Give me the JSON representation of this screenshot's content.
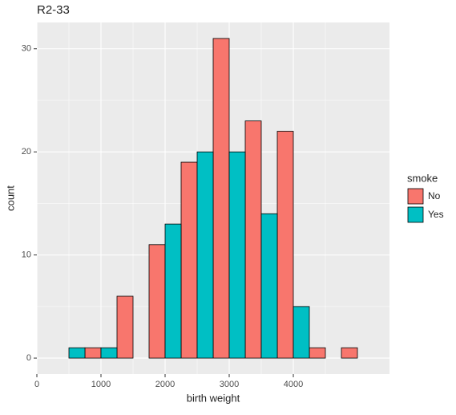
{
  "chart_data": {
    "type": "histogram",
    "title": "R2-33",
    "x_label": "birth weight",
    "y_label": "count",
    "legend_title": "smoke",
    "position": "dodge",
    "bins": [
      250,
      750,
      1250,
      1750,
      2250,
      2750,
      3250,
      3750,
      4250,
      4750,
      5250
    ],
    "series": [
      {
        "name": "No",
        "color": "#F8766D",
        "values": [
          0,
          1,
          6,
          11,
          19,
          31,
          23,
          22,
          1,
          1
        ]
      },
      {
        "name": "Yes",
        "color": "#00BFC4",
        "values": [
          1,
          1,
          0,
          13,
          20,
          20,
          14,
          5,
          0,
          0
        ]
      }
    ],
    "xlim": [
      0,
      5500
    ],
    "xticks": [
      0,
      1000,
      2000,
      3000,
      4000
    ],
    "x_minor_ticks": [
      500,
      1500,
      2500,
      3500,
      4500
    ],
    "ylim": [
      -1.55,
      32.55
    ],
    "yticks": [
      0,
      10,
      20,
      30
    ],
    "y_minor_ticks": [
      5,
      15,
      25
    ],
    "grid": true,
    "legend_position": "right"
  }
}
